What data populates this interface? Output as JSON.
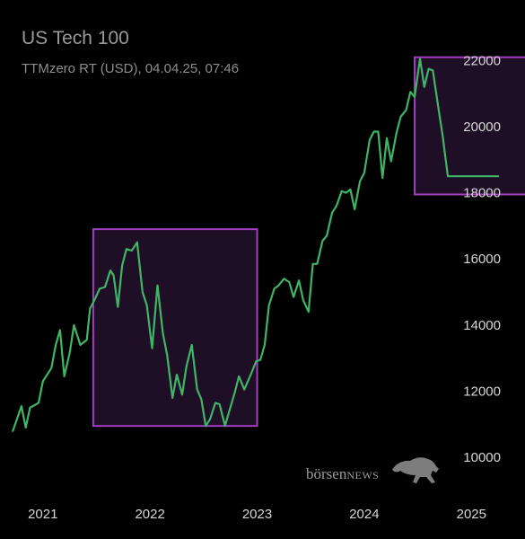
{
  "header": {
    "title": "US Tech 100",
    "subtitle": "TTMzero RT (USD), 04.04.25, 07:46"
  },
  "watermark": {
    "text_a": "börsen",
    "text_b": "NEWS",
    "icon": "bull-icon"
  },
  "colors": {
    "background": "#000000",
    "line": "#3fb565",
    "line_in_box": "#4f9a6a",
    "highlight_stroke": "#a23ec2",
    "highlight_fill": "#1f0f26"
  },
  "chart_data": {
    "type": "line",
    "title": "",
    "xlabel": "",
    "ylabel": "",
    "x_ticks": [
      "2021",
      "2022",
      "2023",
      "2024",
      "2025"
    ],
    "y_ticks": [
      "10000",
      "12000",
      "14000",
      "16000",
      "18000",
      "20000",
      "22000"
    ],
    "xlim": [
      2020.6,
      2025.5
    ],
    "ylim": [
      9650,
      22200
    ],
    "grid": false,
    "legend": "none",
    "highlights": [
      {
        "x_range": [
          2021.47,
          2023.0
        ],
        "y_range": [
          10950,
          16900
        ]
      },
      {
        "x_range": [
          2024.47,
          2025.66
        ],
        "y_range": [
          17950,
          22100
        ]
      }
    ],
    "series": [
      {
        "x": [
          2020.72,
          2020.8,
          2020.84,
          2020.88,
          2020.96,
          2021.0,
          2021.08,
          2021.12,
          2021.16,
          2021.2,
          2021.25,
          2021.29,
          2021.35,
          2021.41,
          2021.44,
          2021.48,
          2021.53,
          2021.58,
          2021.63,
          2021.66,
          2021.7,
          2021.74,
          2021.78,
          2021.83,
          2021.88,
          2021.93,
          2021.97,
          2022.02,
          2022.07,
          2022.12,
          2022.16,
          2022.21,
          2022.25,
          2022.3,
          2022.34,
          2022.39,
          2022.44,
          2022.48,
          2022.52,
          2022.56,
          2022.61,
          2022.65,
          2022.7,
          2022.74,
          2022.79,
          2022.83,
          2022.88,
          2022.94,
          2022.99,
          2023.03,
          2023.07,
          2023.11,
          2023.16,
          2023.2,
          2023.25,
          2023.3,
          2023.34,
          2023.39,
          2023.43,
          2023.48,
          2023.52,
          2023.56,
          2023.61,
          2023.65,
          2023.7,
          2023.74,
          2023.79,
          2023.83,
          2023.87,
          2023.91,
          2023.96,
          2024.0,
          2024.05,
          2024.09,
          2024.13,
          2024.17,
          2024.21,
          2024.25,
          2024.3,
          2024.34,
          2024.39,
          2024.43,
          2024.47,
          2024.52,
          2024.56,
          2024.6,
          2024.64,
          2024.69,
          2024.73,
          2024.78,
          2024.82,
          2024.86,
          2024.91,
          2024.95,
          2024.99,
          2025.03,
          2025.08,
          2025.12,
          2025.16,
          2025.2,
          2025.25
        ],
        "y": [
          10800,
          11550,
          10900,
          11500,
          11650,
          12300,
          12700,
          13400,
          13850,
          12450,
          13150,
          14000,
          13400,
          13550,
          14500,
          14750,
          15100,
          15150,
          15650,
          15500,
          14550,
          15800,
          16300,
          16250,
          16500,
          15000,
          14600,
          13300,
          15200,
          13750,
          13100,
          11800,
          12500,
          11900,
          12750,
          13400,
          12050,
          11750,
          10950,
          11150,
          11650,
          11600,
          10950,
          11400,
          11950,
          12450,
          12050,
          12500,
          12900,
          12950,
          13400,
          14600,
          15100,
          15200,
          15400,
          15300,
          14850,
          15350,
          14750,
          14400,
          15850,
          15850,
          16550,
          16700,
          17400,
          17600,
          18050,
          18000,
          18100,
          17500,
          18350,
          18600,
          19600,
          19850,
          19850,
          18450,
          19650,
          18950,
          19800,
          20300,
          20500,
          21050,
          20900,
          22050,
          21200,
          21750,
          21700,
          20600,
          19750,
          18500,
          18500,
          18500,
          18500,
          18500,
          18500,
          18500,
          18500,
          18500,
          18500,
          18500,
          18500
        ]
      }
    ]
  }
}
